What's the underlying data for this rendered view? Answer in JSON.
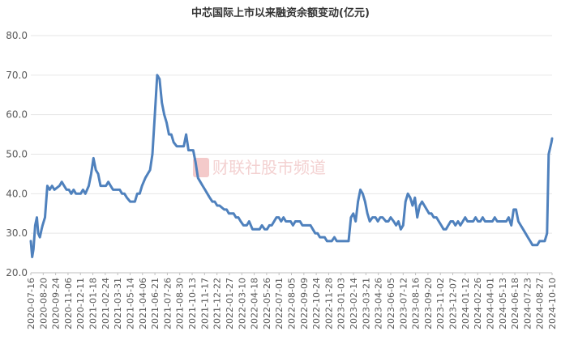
{
  "chart_data": {
    "type": "line",
    "title": "中芯国际上市以来融资余额变动(亿元)",
    "xlabel": "",
    "ylabel": "",
    "ylim": [
      20,
      80
    ],
    "yticks": [
      "20.0",
      "30.0",
      "40.0",
      "50.0",
      "60.0",
      "70.0",
      "80.0"
    ],
    "grid": true,
    "legend": "none",
    "line_color": "#4f81bd",
    "watermark": "财联社股市频道",
    "watermark_color": "#e06666",
    "xticks": [
      "2020-07-16",
      "2020-08-20",
      "2020-09-24",
      "2020-11-06",
      "2020-12-11",
      "2021-01-18",
      "2021-02-24",
      "2021-03-31",
      "2021-05-14",
      "2021-04-06",
      "2021-06-21",
      "2021-07-26",
      "2021-08-30",
      "2021-10-13",
      "2021-11-17",
      "2021-12-22",
      "2022-01-27",
      "2022-03-10",
      "2022-04-18",
      "2022-05-26",
      "2022-07-01",
      "2022-08-05",
      "2022-09-09",
      "2022-10-24",
      "2022-11-28",
      "2023-01-03",
      "2023-02-14",
      "2023-03-21",
      "2023-04-26",
      "2023-06-05",
      "2023-07-12",
      "2023-08-16",
      "2023-09-20",
      "2023-11-02",
      "2023-12-07",
      "2024-01-12",
      "2024-02-26",
      "2024-04-01",
      "2024-05-13",
      "2024-06-18",
      "2024-07-23",
      "2024-08-27",
      "2024-10-10"
    ],
    "series": [
      {
        "x": [
          "2020-07-16",
          "2020-07-20",
          "2020-07-24",
          "2020-07-29",
          "2020-08-03",
          "2020-08-07",
          "2020-08-12",
          "2020-08-17",
          "2020-08-20",
          "2020-08-27",
          "2020-09-03",
          "2020-09-10",
          "2020-09-17",
          "2020-09-24",
          "2020-10-09",
          "2020-10-16",
          "2020-10-23",
          "2020-10-30",
          "2020-11-06",
          "2020-11-13",
          "2020-11-20",
          "2020-11-27",
          "2020-12-04",
          "2020-12-11",
          "2020-12-18",
          "2020-12-25",
          "2021-01-04",
          "2021-01-11",
          "2021-01-18",
          "2021-01-25",
          "2021-02-01",
          "2021-02-08",
          "2021-02-24",
          "2021-03-03",
          "2021-03-10",
          "2021-03-17",
          "2021-03-24",
          "2021-03-31",
          "2021-04-06",
          "2021-04-13",
          "2021-04-20",
          "2021-04-27",
          "2021-05-07",
          "2021-05-14",
          "2021-05-21",
          "2021-05-28",
          "2021-06-04",
          "2021-06-11",
          "2021-06-21",
          "2021-06-28",
          "2021-07-05",
          "2021-07-12",
          "2021-07-19",
          "2021-07-26",
          "2021-08-02",
          "2021-08-09",
          "2021-08-16",
          "2021-08-23",
          "2021-08-30",
          "2021-09-06",
          "2021-09-13",
          "2021-09-22",
          "2021-09-29",
          "2021-10-13",
          "2021-10-20",
          "2021-10-27",
          "2021-11-03",
          "2021-11-10",
          "2021-11-17",
          "2021-11-24",
          "2021-12-01",
          "2021-12-08",
          "2021-12-15",
          "2021-12-22",
          "2021-12-29",
          "2022-01-06",
          "2022-01-13",
          "2022-01-20",
          "2022-01-27",
          "2022-02-10",
          "2022-02-17",
          "2022-02-24",
          "2022-03-03",
          "2022-03-10",
          "2022-03-17",
          "2022-03-24",
          "2022-03-31",
          "2022-04-08",
          "2022-04-18",
          "2022-04-25",
          "2022-05-05",
          "2022-05-12",
          "2022-05-19",
          "2022-05-26",
          "2022-06-02",
          "2022-06-10",
          "2022-06-17",
          "2022-06-24",
          "2022-07-01",
          "2022-07-08",
          "2022-07-15",
          "2022-07-22",
          "2022-07-29",
          "2022-08-05",
          "2022-08-12",
          "2022-08-19",
          "2022-08-26",
          "2022-09-02",
          "2022-09-09",
          "2022-09-16",
          "2022-09-23",
          "2022-09-30",
          "2022-10-14",
          "2022-10-24",
          "2022-10-31",
          "2022-11-07",
          "2022-11-14",
          "2022-11-21",
          "2022-11-28",
          "2022-12-05",
          "2022-12-12",
          "2022-12-19",
          "2022-12-26",
          "2023-01-03",
          "2023-01-10",
          "2023-01-17",
          "2023-01-31",
          "2023-02-07",
          "2023-02-14",
          "2023-02-21",
          "2023-02-28",
          "2023-03-07",
          "2023-03-14",
          "2023-03-21",
          "2023-03-28",
          "2023-04-04",
          "2023-04-11",
          "2023-04-18",
          "2023-04-26",
          "2023-05-05",
          "2023-05-12",
          "2023-05-19",
          "2023-05-26",
          "2023-06-05",
          "2023-06-12",
          "2023-06-19",
          "2023-06-28",
          "2023-07-05",
          "2023-07-12",
          "2023-07-19",
          "2023-07-26",
          "2023-08-02",
          "2023-08-09",
          "2023-08-16",
          "2023-08-23",
          "2023-08-30",
          "2023-09-06",
          "2023-09-13",
          "2023-09-20",
          "2023-09-27",
          "2023-10-11",
          "2023-10-18",
          "2023-10-25",
          "2023-11-02",
          "2023-11-09",
          "2023-11-16",
          "2023-11-23",
          "2023-11-30",
          "2023-12-07",
          "2023-12-14",
          "2023-12-21",
          "2023-12-28",
          "2024-01-05",
          "2024-01-12",
          "2024-01-19",
          "2024-01-26",
          "2024-02-02",
          "2024-02-19",
          "2024-02-26",
          "2024-03-04",
          "2024-03-11",
          "2024-03-18",
          "2024-03-25",
          "2024-04-01",
          "2024-04-09",
          "2024-04-16",
          "2024-04-23",
          "2024-04-30",
          "2024-05-13",
          "2024-05-20",
          "2024-05-27",
          "2024-06-03",
          "2024-06-11",
          "2024-06-18",
          "2024-06-25",
          "2024-07-02",
          "2024-07-09",
          "2024-07-16",
          "2024-07-23",
          "2024-07-30",
          "2024-08-06",
          "2024-08-13",
          "2024-08-20",
          "2024-08-27",
          "2024-09-03",
          "2024-09-10",
          "2024-09-18",
          "2024-09-25",
          "2024-09-30",
          "2024-10-08",
          "2024-10-10"
        ],
        "values": [
          28,
          24,
          26,
          32,
          34,
          30,
          29,
          31,
          32,
          34,
          42,
          41,
          42,
          41,
          42,
          43,
          42,
          41,
          41,
          40,
          41,
          40,
          40,
          40,
          41,
          40,
          42,
          45,
          49,
          46,
          45,
          42,
          42,
          43,
          42,
          41,
          41,
          41,
          41,
          40,
          40,
          39,
          38,
          38,
          38,
          40,
          40,
          42,
          44,
          45,
          46,
          50,
          60,
          70,
          69,
          63,
          60,
          58,
          55,
          55,
          53,
          52,
          52,
          52,
          55,
          51,
          51,
          51,
          48,
          44,
          43,
          42,
          41,
          40,
          39,
          38,
          38,
          37,
          37,
          36,
          36,
          35,
          35,
          35,
          34,
          34,
          33,
          32,
          32,
          33,
          31,
          31,
          31,
          31,
          32,
          31,
          31,
          32,
          32,
          33,
          34,
          34,
          33,
          34,
          33,
          33,
          33,
          32,
          33,
          33,
          33,
          32,
          32,
          32,
          31,
          30,
          30,
          29,
          29,
          29,
          28,
          28,
          28,
          29,
          28,
          28,
          28,
          28,
          28,
          34,
          35,
          33,
          38,
          41,
          40,
          38,
          35,
          33,
          34,
          34,
          33,
          34,
          34,
          33,
          33,
          34,
          33,
          32,
          33,
          31,
          32,
          38,
          40,
          39,
          37,
          39,
          34,
          37,
          38,
          37,
          35,
          35,
          34,
          34,
          33,
          32,
          31,
          31,
          32,
          33,
          33,
          32,
          33,
          32,
          33,
          34,
          33,
          33,
          34,
          33,
          33,
          34,
          33,
          33,
          33,
          33,
          34,
          33,
          33,
          33,
          33,
          34,
          32,
          36,
          36,
          33,
          32,
          31,
          30,
          29,
          28,
          27,
          27,
          27,
          28,
          28,
          28,
          30,
          50,
          53,
          54
        ]
      }
    ]
  }
}
